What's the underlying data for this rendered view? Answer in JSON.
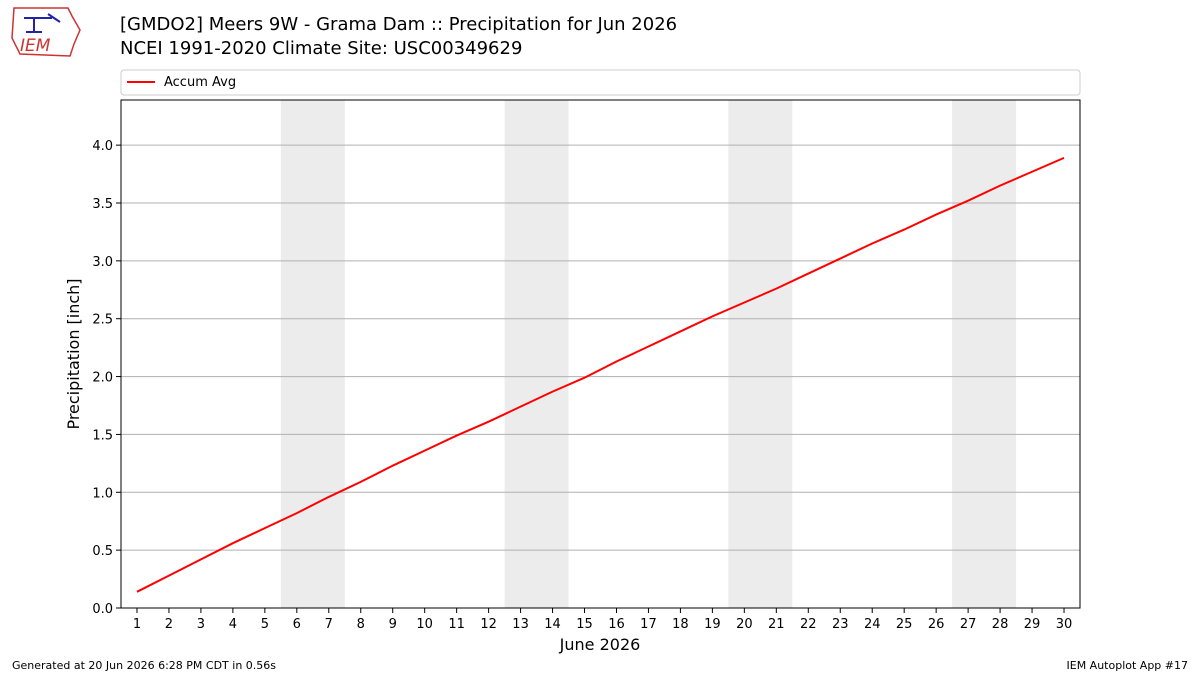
{
  "logo_text": "IEM",
  "footer": {
    "left": "Generated at 20 Jun 2026 6:28 PM CDT in 0.56s",
    "right": "IEM Autoplot App #17"
  },
  "chart_data": {
    "type": "line",
    "title": "[GMDO2] Meers 9W - Grama Dam :: Precipitation for Jun 2026",
    "subtitle": "NCEI 1991-2020 Climate Site: USC00349629",
    "x_label": "June 2026",
    "y_label": "Precipitation [inch]",
    "x": [
      1,
      2,
      3,
      4,
      5,
      6,
      7,
      8,
      9,
      10,
      11,
      12,
      13,
      14,
      15,
      16,
      17,
      18,
      19,
      20,
      21,
      22,
      23,
      24,
      25,
      26,
      27,
      28,
      29,
      30
    ],
    "series": [
      {
        "name": "Accum Avg",
        "color": "#ff0000",
        "values": [
          0.14,
          0.28,
          0.42,
          0.56,
          0.69,
          0.82,
          0.96,
          1.09,
          1.23,
          1.36,
          1.49,
          1.61,
          1.74,
          1.87,
          1.99,
          2.13,
          2.26,
          2.39,
          2.52,
          2.64,
          2.76,
          2.89,
          3.02,
          3.15,
          3.27,
          3.4,
          3.52,
          3.65,
          3.77,
          3.89
        ]
      }
    ],
    "xlim": [
      0.5,
      30.5
    ],
    "xticks": [
      1,
      2,
      3,
      4,
      5,
      6,
      7,
      8,
      9,
      10,
      11,
      12,
      13,
      14,
      15,
      16,
      17,
      18,
      19,
      20,
      21,
      22,
      23,
      24,
      25,
      26,
      27,
      28,
      29,
      30
    ],
    "ylim": [
      0,
      4.39
    ],
    "yticks": [
      {
        "value": 0,
        "label": "0.0"
      },
      0.5,
      {
        "value": 1,
        "label": "1.0"
      },
      1.5,
      {
        "value": 2,
        "label": "2.0"
      },
      2.5,
      {
        "value": 3,
        "label": "3.0"
      },
      3.5,
      {
        "value": 4,
        "label": "4.0"
      }
    ],
    "shaded_x_ranges": [
      [
        5.5,
        7.5
      ],
      [
        12.5,
        14.5
      ],
      [
        19.5,
        21.5
      ],
      [
        26.5,
        28.5
      ]
    ],
    "shade_color": "#ececec",
    "grid": true,
    "legend": "top"
  }
}
